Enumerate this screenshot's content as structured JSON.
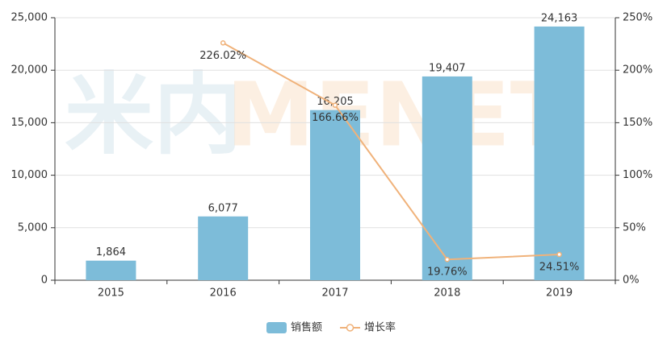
{
  "chart_data": {
    "type": "bar",
    "watermark": [
      "米内",
      "MENET"
    ],
    "categories": [
      "2015",
      "2016",
      "2017",
      "2018",
      "2019"
    ],
    "series": [
      {
        "name": "销售额",
        "type": "bar",
        "color": "#7dbcd9",
        "values": [
          1864,
          6077,
          16205,
          19407,
          24163
        ],
        "value_labels": [
          "1,864",
          "6,077",
          "16,205",
          "19,407",
          "24,163"
        ]
      },
      {
        "name": "增长率",
        "type": "line",
        "axis": "y2",
        "color": "#f0b27a",
        "values": [
          null,
          226.02,
          166.66,
          19.76,
          24.51
        ],
        "value_labels": [
          null,
          "226.02%",
          "166.66%",
          "19.76%",
          "24.51%"
        ]
      }
    ],
    "ylim": [
      0,
      25000
    ],
    "yticks": [
      0,
      {
        "value": 5000,
        "label": "5,000"
      },
      {
        "value": 10000,
        "label": "10,000"
      },
      {
        "value": 15000,
        "label": "15,000"
      },
      {
        "value": 20000,
        "label": "20,000"
      },
      {
        "value": 25000,
        "label": "25,000"
      }
    ],
    "y2lim": [
      0,
      250
    ],
    "y2ticks": [
      {
        "value": 0,
        "label": "0%"
      },
      {
        "value": 50,
        "label": "50%"
      },
      {
        "value": 100,
        "label": "100%"
      },
      {
        "value": 150,
        "label": "150%"
      },
      {
        "value": 200,
        "label": "200%"
      },
      {
        "value": 250,
        "label": "250%"
      }
    ],
    "grid": true,
    "legend": "bottom"
  }
}
